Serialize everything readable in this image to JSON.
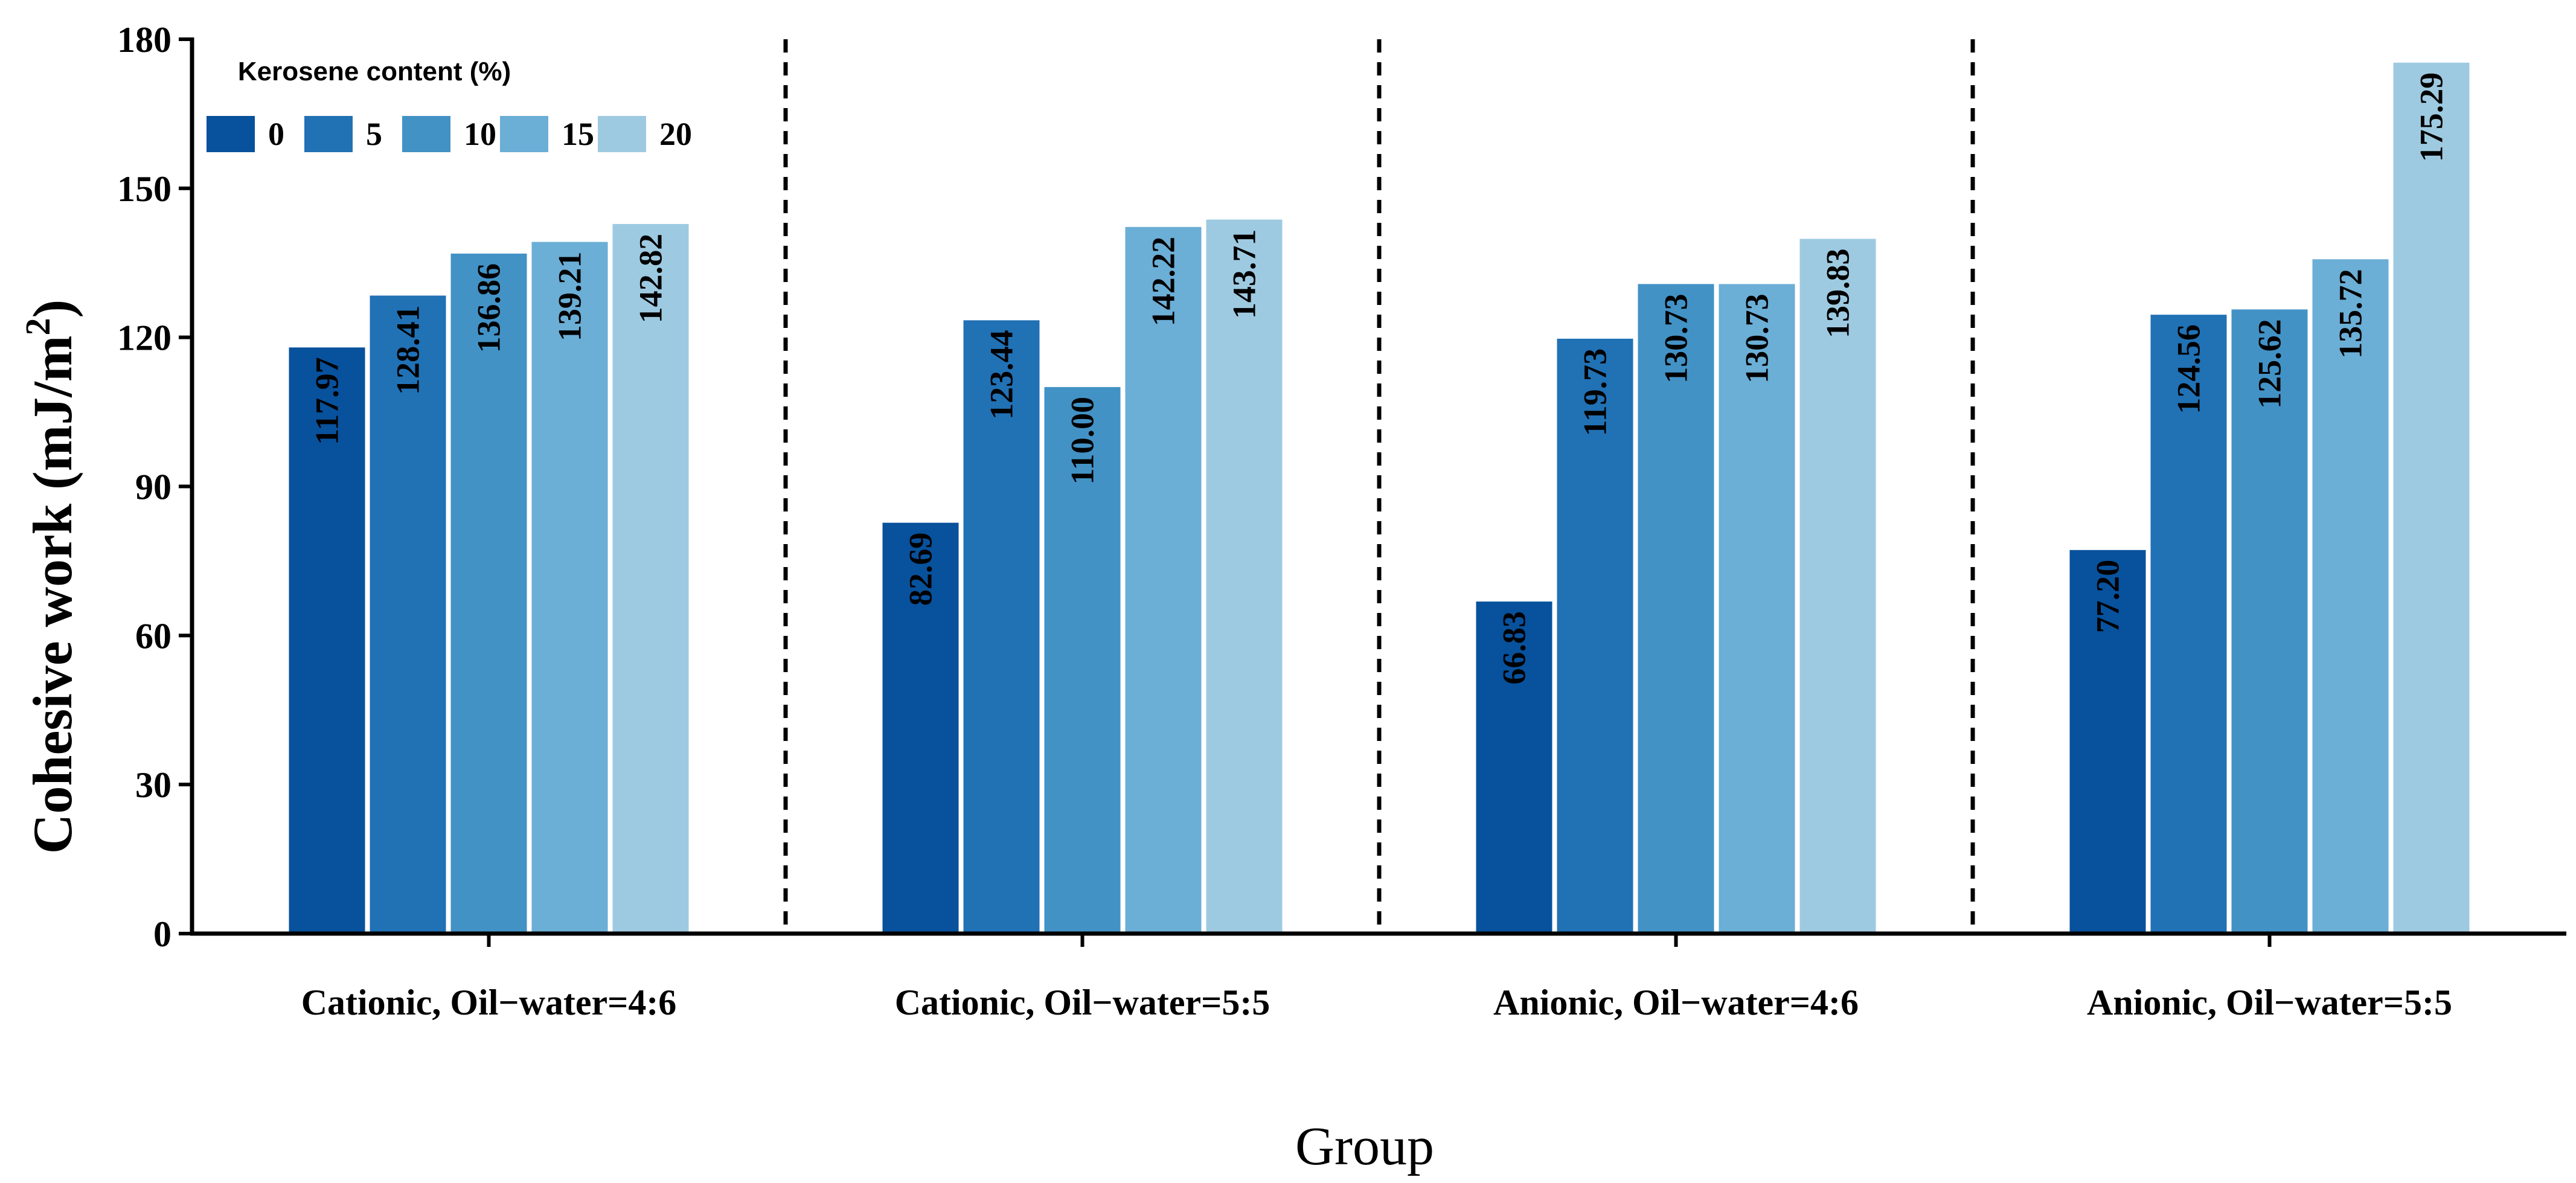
{
  "chart_data": {
    "type": "bar",
    "title": "",
    "xlabel": "Group",
    "ylabel": "Cohesive work (mJ/m",
    "ylabel_sup": "2",
    "ylabel_close": ")",
    "ylim": [
      0,
      180
    ],
    "yticks": [
      "0",
      "30",
      "60",
      "90",
      "120",
      "150",
      "180"
    ],
    "categories": [
      "Cationic, Oil−water=4:6",
      "Cationic, Oil−water=5:5",
      "Anionic, Oil−water=4:6",
      "Anionic, Oil−water=5:5"
    ],
    "legend_title": "Kerosene content (%)",
    "legend_position": "top-left",
    "separators": "dashed vertical lines between groups",
    "series": [
      {
        "name": "0",
        "color": "#08519c",
        "values": [
          117.97,
          82.69,
          66.83,
          77.2
        ],
        "labels": [
          "117.97",
          "82.69",
          "66.83",
          "77.20"
        ]
      },
      {
        "name": "5",
        "color": "#2171b5",
        "values": [
          128.41,
          123.44,
          119.73,
          124.56
        ],
        "labels": [
          "128.41",
          "123.44",
          "119.73",
          "124.56"
        ]
      },
      {
        "name": "10",
        "color": "#4292c6",
        "values": [
          136.86,
          110.0,
          130.73,
          125.62
        ],
        "labels": [
          "136.86",
          "110.00",
          "130.73",
          "125.62"
        ]
      },
      {
        "name": "15",
        "color": "#6baed6",
        "values": [
          139.21,
          142.22,
          130.73,
          135.72
        ],
        "labels": [
          "139.21",
          "142.22",
          "130.73",
          "135.72"
        ]
      },
      {
        "name": "20",
        "color": "#9ecae1",
        "values": [
          142.82,
          143.71,
          139.83,
          175.29
        ],
        "labels": [
          "142.82",
          "143.71",
          "139.83",
          "175.29"
        ]
      }
    ]
  }
}
